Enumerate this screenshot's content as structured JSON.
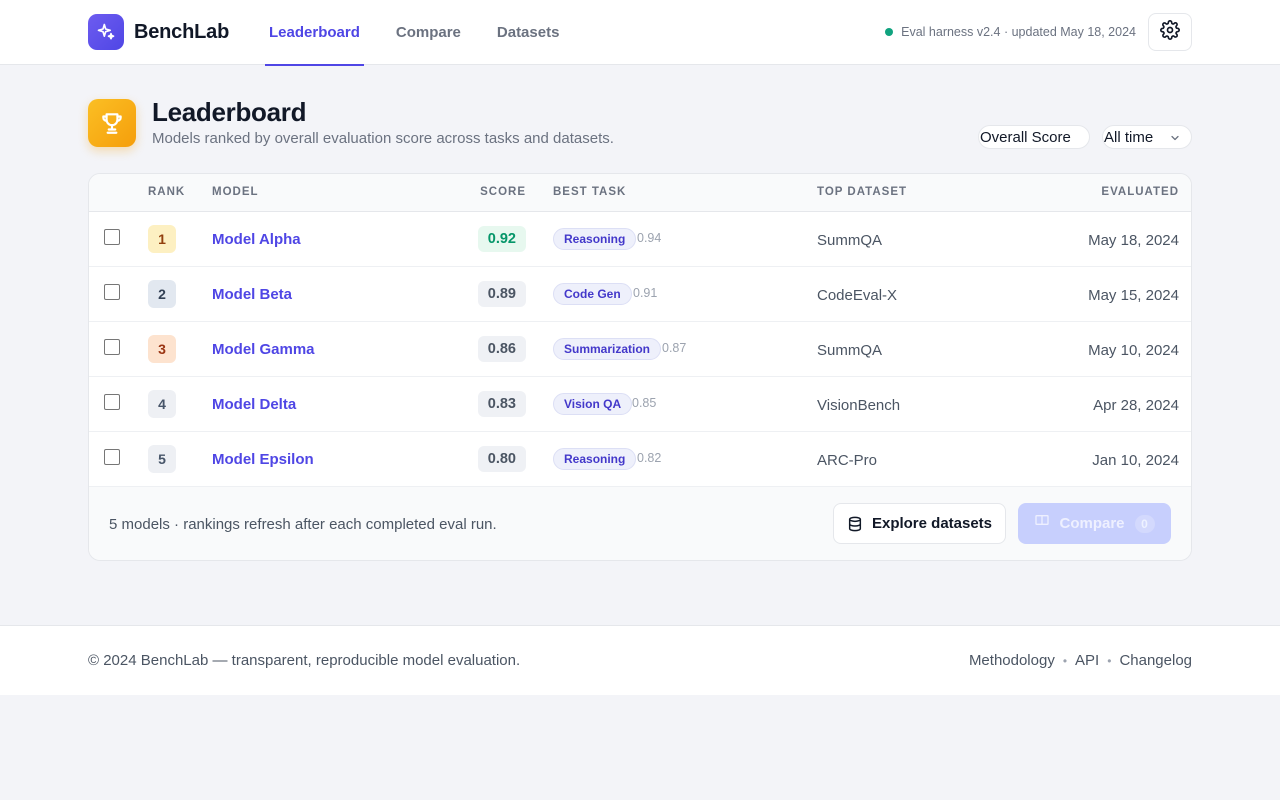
{
  "app": {
    "name": "BenchLab",
    "logo_icon": "sparkles-icon",
    "accent_color": "#4f46e5"
  },
  "nav": {
    "tabs": [
      {
        "label": "Leaderboard",
        "active": true
      },
      {
        "label": "Compare",
        "active": false
      },
      {
        "label": "Datasets",
        "active": false
      }
    ]
  },
  "header_status": {
    "text": "Eval harness v2.4 · updated May 18, 2024",
    "dot_color": "#10a37f"
  },
  "settings": {
    "icon": "gear-icon"
  },
  "page": {
    "title": "Leaderboard",
    "subtitle": "Models ranked by overall evaluation score across tasks and datasets.",
    "icon": "trophy-icon"
  },
  "filters": {
    "metric": "Overall Score",
    "period": "All time"
  },
  "table": {
    "columns": {
      "rank": "RANK",
      "model": "MODEL",
      "score": "SCORE",
      "best_task": "BEST TASK",
      "top_dataset": "TOP DATASET",
      "evaluated": "EVALUATED"
    },
    "rows": [
      {
        "rank": "1",
        "model": "Model Alpha",
        "score": "0.92",
        "task": "Reasoning",
        "task_score": "0.94",
        "dataset": "SummQA",
        "evaluated": "May 18, 2024"
      },
      {
        "rank": "2",
        "model": "Model Beta",
        "score": "0.89",
        "task": "Code Gen",
        "task_score": "0.91",
        "dataset": "CodeEval-X",
        "evaluated": "May 15, 2024"
      },
      {
        "rank": "3",
        "model": "Model Gamma",
        "score": "0.86",
        "task": "Summarization",
        "task_score": "0.87",
        "dataset": "SummQA",
        "evaluated": "May 10, 2024"
      },
      {
        "rank": "4",
        "model": "Model Delta",
        "score": "0.83",
        "task": "Vision QA",
        "task_score": "0.85",
        "dataset": "VisionBench",
        "evaluated": "Apr 28, 2024"
      },
      {
        "rank": "5",
        "model": "Model Epsilon",
        "score": "0.80",
        "task": "Reasoning",
        "task_score": "0.82",
        "dataset": "ARC-Pro",
        "evaluated": "Jan 10, 2024"
      }
    ]
  },
  "card_footer": {
    "note": "5 models · rankings refresh after each completed eval run.",
    "explore_label": "Explore datasets",
    "compare_label": "Compare",
    "compare_count": "0"
  },
  "footer": {
    "copyright": "© 2024 BenchLab — transparent, reproducible model evaluation.",
    "links": [
      "Methodology",
      "API",
      "Changelog"
    ]
  }
}
